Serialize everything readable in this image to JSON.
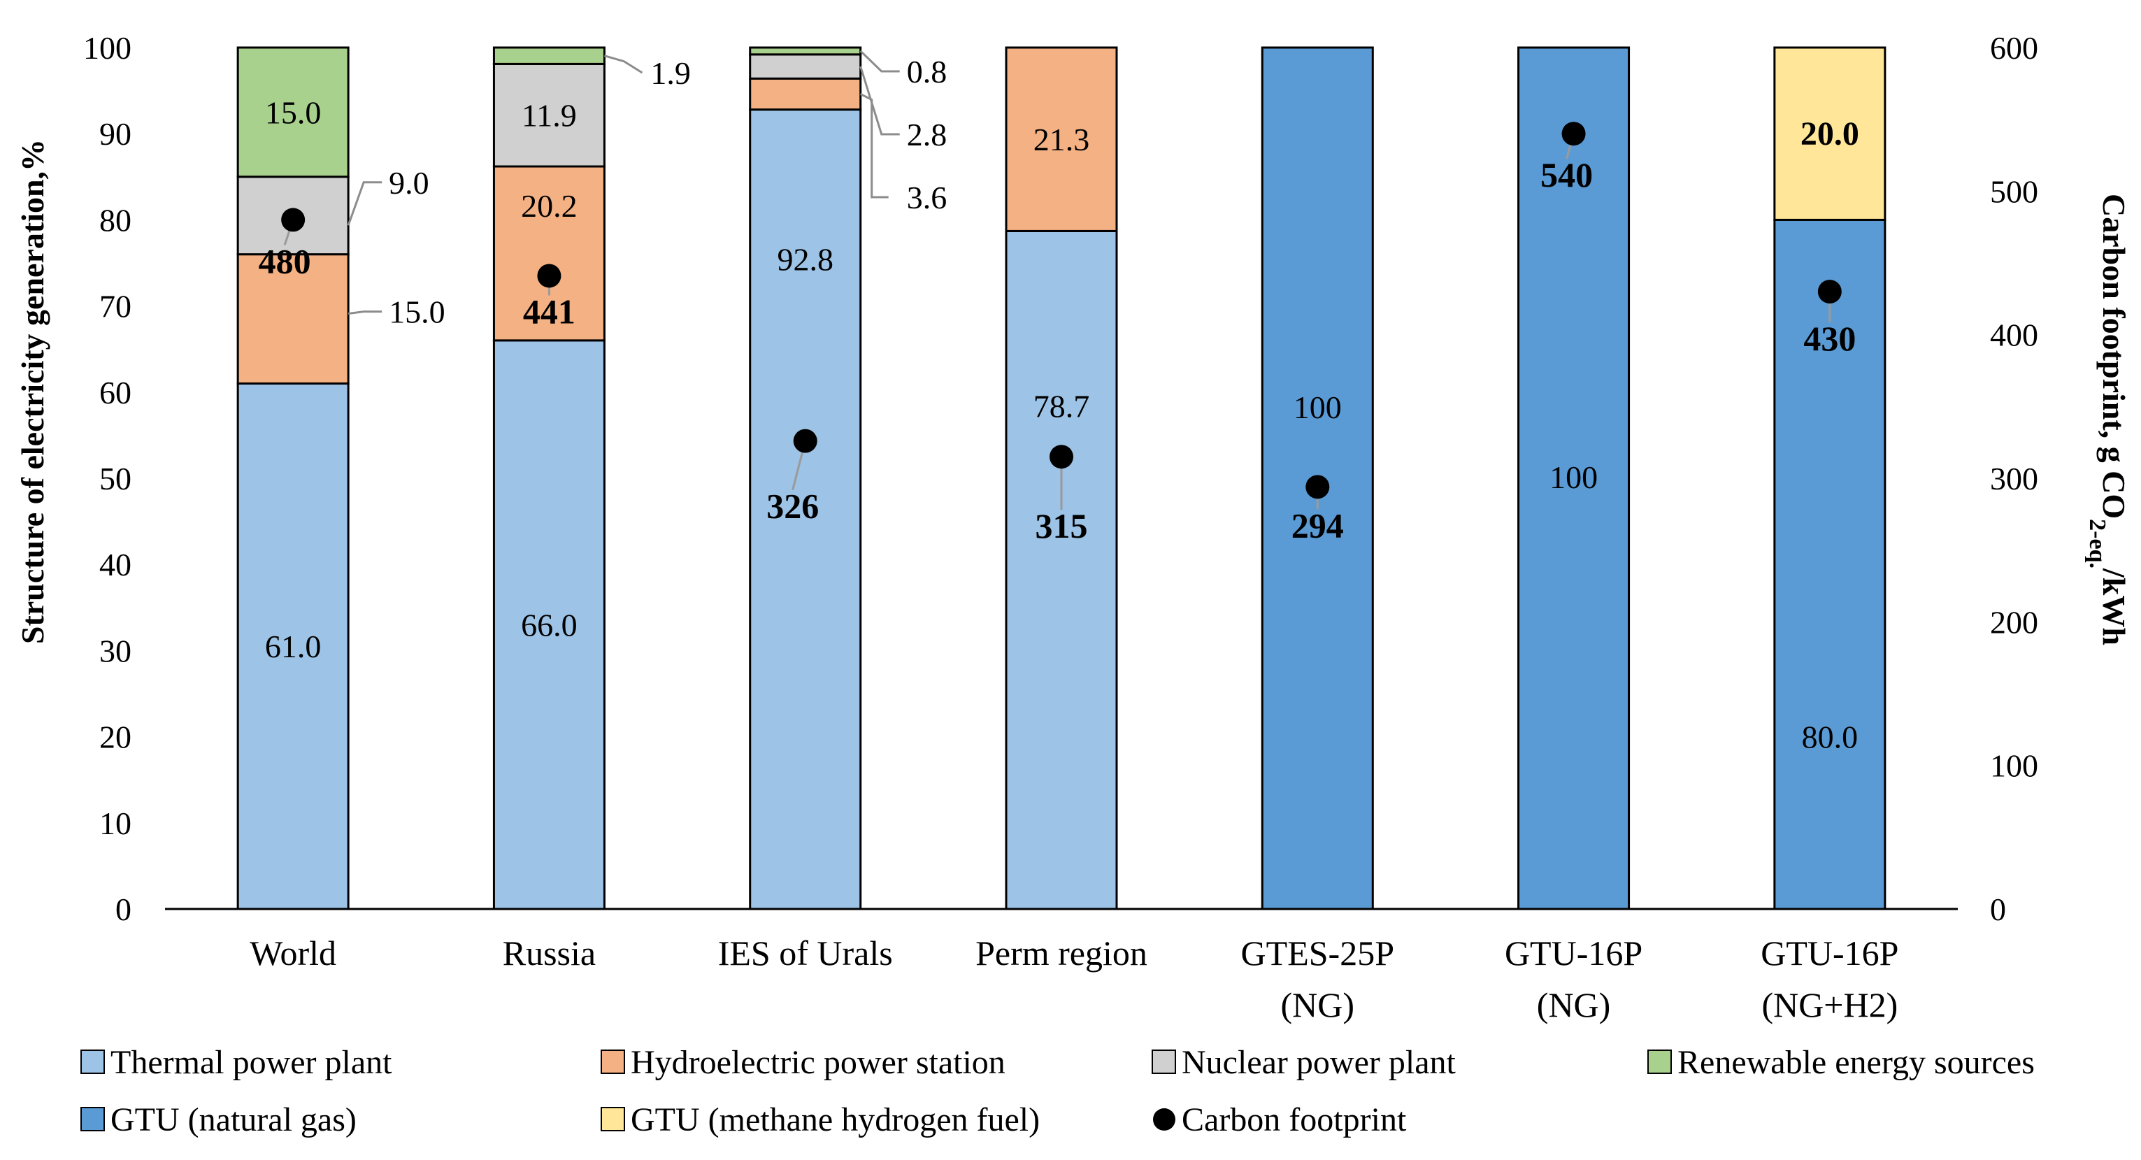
{
  "chart_data": {
    "type": "bar",
    "stacked": true,
    "categories": [
      "World",
      "Russia",
      "IES of Urals",
      "Perm region",
      "GTES-25P\n(NG)",
      "GTU-16P\n(NG)",
      "GTU-16P\n(NG+H2)"
    ],
    "ylabel": "Structure of electricity generation,%",
    "ylim": [
      0,
      100
    ],
    "yticks": [
      "0",
      "10",
      "20",
      "30",
      "40",
      "50",
      "60",
      "70",
      "80",
      "90",
      "100"
    ],
    "y2label_main": "Carbon footprint, g CO",
    "y2label_sub": "2-eq.",
    "y2label_end": "/kWh",
    "y2lim": [
      0,
      600
    ],
    "y2ticks": [
      "0",
      "100",
      "200",
      "300",
      "400",
      "500",
      "600"
    ],
    "colors": {
      "thermal": "#9DC3E6",
      "hydro": "#F4B183",
      "nuclear": "#D0D0D0",
      "renewable": "#A9D18E",
      "gtu_ng": "#5B9BD5",
      "gtu_h2": "#FFE699",
      "footprint": "#000000"
    },
    "series": [
      {
        "key": "thermal",
        "name": "Thermal power plant",
        "values": [
          61.0,
          66.0,
          92.8,
          78.7,
          0,
          0,
          0
        ],
        "labels": [
          "61.0",
          "66.0",
          "92.8",
          "78.7",
          "",
          "",
          ""
        ]
      },
      {
        "key": "gtu_ng",
        "name": "GTU (natural gas)",
        "values": [
          0,
          0,
          0,
          0,
          100,
          100,
          80.0
        ],
        "labels": [
          "",
          "",
          "",
          "",
          "100",
          "100",
          "80.0"
        ]
      },
      {
        "key": "hydro",
        "name": "Hydroelectric power station",
        "values": [
          15.0,
          20.2,
          3.6,
          21.3,
          0,
          0,
          0
        ],
        "labels": [
          "15.0",
          "20.2",
          "3.6",
          "21.3",
          "",
          "",
          ""
        ]
      },
      {
        "key": "nuclear",
        "name": "Nuclear power plant",
        "values": [
          9.0,
          11.9,
          2.8,
          0,
          0,
          0,
          0
        ],
        "labels": [
          "9.0",
          "11.9",
          "2.8",
          "",
          "",
          "",
          ""
        ]
      },
      {
        "key": "renewable",
        "name": "Renewable energy sources",
        "values": [
          15.0,
          1.9,
          0.8,
          0,
          0,
          0,
          0
        ],
        "labels": [
          "15.0",
          "1.9",
          "0.8",
          "",
          "",
          "",
          ""
        ]
      },
      {
        "key": "gtu_h2",
        "name": "GTU (methane hydrogen fuel)",
        "values": [
          0,
          0,
          0,
          0,
          0,
          0,
          20.0
        ],
        "labels": [
          "",
          "",
          "",
          "",
          "",
          "",
          "20.0"
        ]
      }
    ],
    "carbon_footprint": {
      "name": "Carbon footprint",
      "axis": "secondary",
      "values": [
        480,
        441,
        326,
        315,
        294,
        540,
        430
      ],
      "labels": [
        "480",
        "441",
        "326",
        "315",
        "294",
        "540",
        "430"
      ]
    },
    "legend": [
      {
        "key": "thermal",
        "label": "Thermal power plant",
        "marker": "square"
      },
      {
        "key": "hydro",
        "label": "Hydroelectric power station",
        "marker": "square"
      },
      {
        "key": "nuclear",
        "label": "Nuclear power plant",
        "marker": "square"
      },
      {
        "key": "renewable",
        "label": "Renewable energy sources",
        "marker": "square"
      },
      {
        "key": "gtu_ng",
        "label": "GTU (natural gas)",
        "marker": "square"
      },
      {
        "key": "gtu_h2",
        "label": "GTU (methane hydrogen fuel)",
        "marker": "square"
      },
      {
        "key": "footprint",
        "label": "Carbon footprint",
        "marker": "circle"
      }
    ],
    "legend_position": "bottom"
  }
}
